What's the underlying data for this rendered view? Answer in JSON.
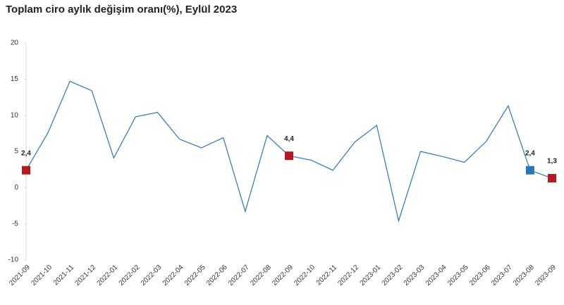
{
  "chart_data": {
    "type": "line",
    "title": "Toplam ciro aylık değişim oranı(%), Eylül 2023",
    "categories": [
      "2021-09",
      "2021-10",
      "2021-11",
      "2021-12",
      "2022-01",
      "2022-02",
      "2022-03",
      "2022-04",
      "2022-05",
      "2022-06",
      "2022-07",
      "2022-08",
      "2022-09",
      "2022-10",
      "2022-11",
      "2022-12",
      "2023-01",
      "2023-02",
      "2023-03",
      "2023-04",
      "2023-05",
      "2023-06",
      "2023-07",
      "2023-08",
      "2023-09"
    ],
    "values": [
      2.4,
      7.6,
      14.7,
      13.4,
      4.1,
      9.8,
      10.4,
      6.7,
      5.5,
      6.9,
      -3.3,
      7.2,
      4.4,
      3.8,
      2.4,
      6.3,
      8.6,
      -4.6,
      5.0,
      4.3,
      3.5,
      6.4,
      11.3,
      2.4,
      1.3
    ],
    "value_labels": [
      "2,4",
      null,
      null,
      null,
      null,
      null,
      null,
      null,
      null,
      null,
      null,
      null,
      "4,4",
      null,
      null,
      null,
      null,
      null,
      null,
      null,
      null,
      null,
      null,
      "2,4",
      "1,3"
    ],
    "marker_colors": [
      "#b5181f",
      null,
      null,
      null,
      null,
      null,
      null,
      null,
      null,
      null,
      null,
      null,
      "#b5181f",
      null,
      null,
      null,
      null,
      null,
      null,
      null,
      null,
      null,
      null,
      "#2e75b6",
      "#b5181f"
    ],
    "color": "#2e75b6",
    "ylim": [
      -10,
      20
    ],
    "yticks": [
      -10,
      -5,
      0,
      5,
      10,
      15,
      20
    ]
  }
}
